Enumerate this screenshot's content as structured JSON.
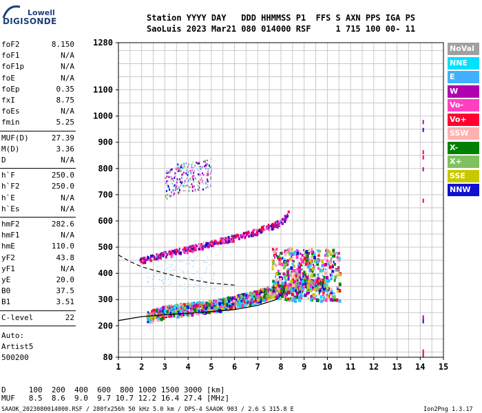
{
  "logo": {
    "top": "Lowell",
    "bottom": "DIGISONDE"
  },
  "header": {
    "line1": "Station YYYY DAY   DDD HHMMSS P1  FFS S AXN PPS IGA PS",
    "line2": "SaoLuis 2023 Mar21 080 014000 RSF     1 715 100 00- 11"
  },
  "params_group1": [
    {
      "name": "foF2",
      "value": "8.150"
    },
    {
      "name": "foF1",
      "value": "N/A"
    },
    {
      "name": "foF1p",
      "value": "N/A"
    },
    {
      "name": "foE",
      "value": "N/A"
    },
    {
      "name": "foEp",
      "value": "0.35"
    },
    {
      "name": "fxI",
      "value": "8.75"
    },
    {
      "name": "foEs",
      "value": "N/A"
    },
    {
      "name": "fmin",
      "value": "5.25"
    }
  ],
  "params_group2": [
    {
      "name": "MUF(D)",
      "value": "27.39"
    },
    {
      "name": "M(D)",
      "value": "3.36"
    },
    {
      "name": "D",
      "value": "N/A"
    }
  ],
  "params_group3": [
    {
      "name": "h`F",
      "value": "250.0"
    },
    {
      "name": "h`F2",
      "value": "250.0"
    },
    {
      "name": "h`E",
      "value": "N/A"
    },
    {
      "name": "h`Es",
      "value": "N/A"
    }
  ],
  "params_group4": [
    {
      "name": "hmF2",
      "value": "282.6"
    },
    {
      "name": "hmF1",
      "value": "N/A"
    },
    {
      "name": "hmE",
      "value": "110.0"
    },
    {
      "name": "yF2",
      "value": "43.8"
    },
    {
      "name": "yF1",
      "value": "N/A"
    },
    {
      "name": "yE",
      "value": "20.0"
    },
    {
      "name": "B0",
      "value": "37.5"
    },
    {
      "name": "B1",
      "value": "3.51"
    }
  ],
  "clevel": {
    "name": "C-level",
    "value": "22"
  },
  "auto": {
    "line1": "Auto:",
    "line2": "Artist5",
    "line3": "500200"
  },
  "legend": [
    {
      "label": "NoVal",
      "color": "#a0a0a0"
    },
    {
      "label": "NNE",
      "color": "#00e0ff"
    },
    {
      "label": "E",
      "color": "#40b0ff"
    },
    {
      "label": "W",
      "color": "#b000b0"
    },
    {
      "label": "Vo-",
      "color": "#ff40c0"
    },
    {
      "label": "Vo+",
      "color": "#ff0030"
    },
    {
      "label": "SSW",
      "color": "#ffb0b0"
    },
    {
      "label": "X-",
      "color": "#008000"
    },
    {
      "label": "X+",
      "color": "#80c060"
    },
    {
      "label": "SSE",
      "color": "#c8c800"
    },
    {
      "label": "NNW",
      "color": "#1010d0"
    }
  ],
  "footer": {
    "d_line": "D     100  200  400  600  800 1000 1500 3000 [km]",
    "muf_line": "MUF   8.5  8.6  9.0  9.7 10.7 12.2 16.4 27.4 [MHz]"
  },
  "status": {
    "left": "SAAOK_2023080014000.RSF / 280fx256h 50 kHz 5.0 km / DPS-4 SAAOK 903 / 2.6 S 315.8 E",
    "right": "Ion2Png 1.3.17"
  },
  "chart_data": {
    "type": "scatter",
    "title": "",
    "xlabel": "",
    "ylabel": "",
    "xlim": [
      1,
      15
    ],
    "ylim": [
      80,
      1280
    ],
    "x_ticks": [
      1,
      2,
      3,
      4,
      5,
      6,
      7,
      8,
      9,
      10,
      11,
      12,
      13,
      14,
      15
    ],
    "y_ticks": [
      80,
      200,
      300,
      400,
      500,
      600,
      700,
      800,
      900,
      1000,
      1100,
      1280
    ],
    "grid": true,
    "series": [
      {
        "values": [
          [
            1.0,
            220
          ],
          [
            2.0,
            235
          ],
          [
            3.0,
            242
          ],
          [
            4.0,
            248
          ],
          [
            5.0,
            254
          ],
          [
            6.0,
            262
          ],
          [
            7.0,
            278
          ],
          [
            7.8,
            300
          ],
          [
            8.1,
            325
          ],
          [
            8.15,
            345
          ]
        ]
      },
      {
        "values": [
          [
            1.0,
            470
          ],
          [
            1.5,
            445
          ],
          [
            2.0,
            425
          ],
          [
            3.0,
            400
          ],
          [
            4.0,
            378
          ],
          [
            5.0,
            363
          ],
          [
            6.0,
            355
          ]
        ]
      },
      {
        "values": [
          [
            1.9,
            450
          ],
          [
            3.0,
            475
          ],
          [
            4.0,
            495
          ],
          [
            5.0,
            518
          ],
          [
            6.0,
            540
          ],
          [
            7.0,
            565
          ],
          [
            8.0,
            598
          ],
          [
            8.3,
            630
          ]
        ]
      },
      {
        "values": [
          [
            2.2,
            240
          ],
          [
            3.0,
            258
          ],
          [
            4.0,
            268
          ],
          [
            5.0,
            278
          ],
          [
            6.0,
            295
          ],
          [
            7.0,
            318
          ],
          [
            8.0,
            345
          ],
          [
            9.0,
            365
          ],
          [
            10.0,
            358
          ]
        ]
      },
      {
        "values": [
          [
            3.0,
            740
          ],
          [
            3.5,
            765
          ],
          [
            4.0,
            770
          ],
          [
            4.5,
            775
          ],
          [
            5.0,
            785
          ]
        ]
      }
    ]
  }
}
